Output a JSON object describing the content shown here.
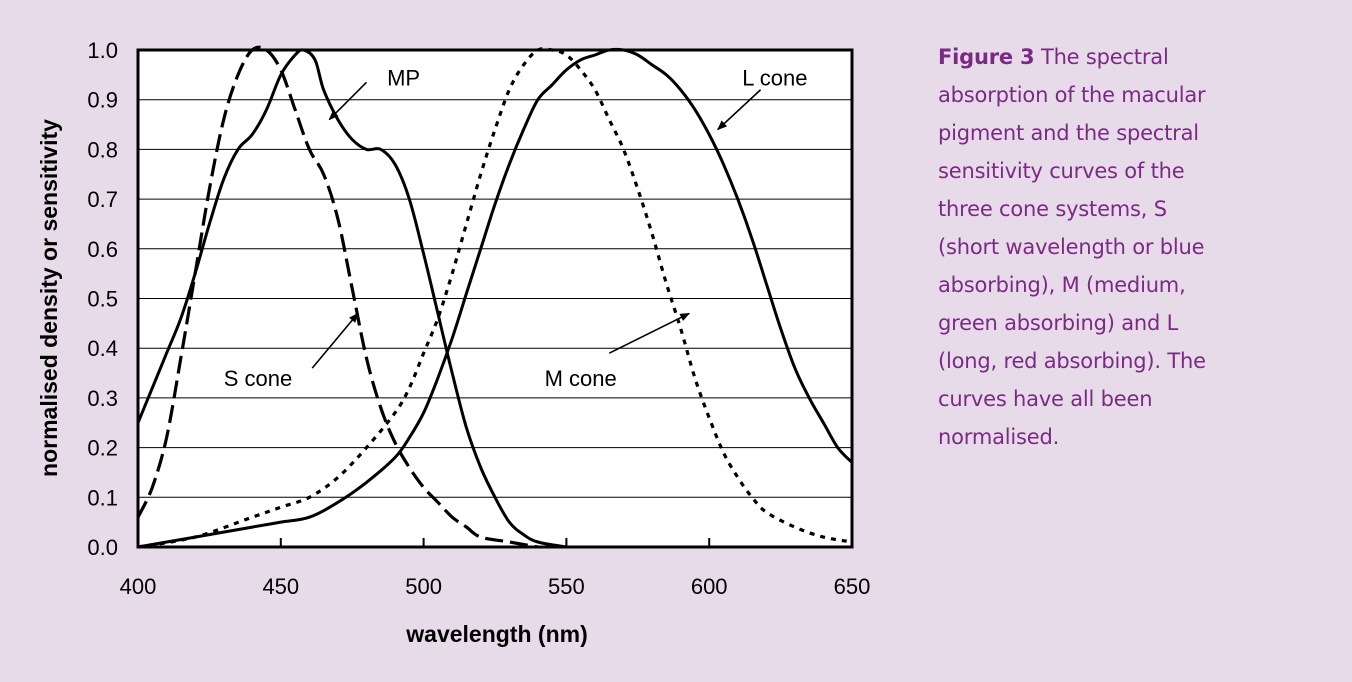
{
  "caption": {
    "label": "Figure 3",
    "text": "The spectral absorption of the macular pigment and the spectral sensitivity curves of the three cone systems, S (short wavelength or blue absorbing), M (medium, green absorbing) and L (long, red absorbing). The curves have all been normalised."
  },
  "chart_data": {
    "type": "line",
    "title": "",
    "xlabel": "wavelength (nm)",
    "ylabel": "normalised density or sensitivity",
    "xlim": [
      400,
      650
    ],
    "ylim": [
      0.0,
      1.0
    ],
    "xticks": [
      400,
      450,
      500,
      550,
      600,
      650
    ],
    "yticks": [
      0.0,
      0.1,
      0.2,
      0.3,
      0.4,
      0.5,
      0.6,
      0.7,
      0.8,
      0.9,
      1.0
    ],
    "ytick_labels": [
      "0.0",
      "0.1",
      "0.2",
      "0.3",
      "0.4",
      "0.5",
      "0.6",
      "0.7",
      "0.8",
      "0.9",
      "1.0"
    ],
    "grid": "horizontal",
    "series": [
      {
        "name": "MP",
        "style": "solid",
        "points": [
          [
            400,
            0.25
          ],
          [
            405,
            0.32
          ],
          [
            410,
            0.39
          ],
          [
            415,
            0.46
          ],
          [
            420,
            0.55
          ],
          [
            425,
            0.65
          ],
          [
            430,
            0.74
          ],
          [
            435,
            0.8
          ],
          [
            440,
            0.83
          ],
          [
            445,
            0.88
          ],
          [
            450,
            0.95
          ],
          [
            455,
            0.99
          ],
          [
            458,
            1.0
          ],
          [
            462,
            0.98
          ],
          [
            465,
            0.92
          ],
          [
            470,
            0.86
          ],
          [
            475,
            0.82
          ],
          [
            480,
            0.8
          ],
          [
            485,
            0.8
          ],
          [
            490,
            0.77
          ],
          [
            495,
            0.7
          ],
          [
            500,
            0.59
          ],
          [
            505,
            0.47
          ],
          [
            510,
            0.35
          ],
          [
            515,
            0.24
          ],
          [
            520,
            0.16
          ],
          [
            525,
            0.1
          ],
          [
            530,
            0.05
          ],
          [
            535,
            0.025
          ],
          [
            540,
            0.01
          ],
          [
            550,
            0.0
          ]
        ]
      },
      {
        "name": "S cone",
        "style": "dashed",
        "points": [
          [
            400,
            0.06
          ],
          [
            405,
            0.12
          ],
          [
            410,
            0.22
          ],
          [
            415,
            0.38
          ],
          [
            420,
            0.55
          ],
          [
            425,
            0.72
          ],
          [
            430,
            0.86
          ],
          [
            435,
            0.95
          ],
          [
            440,
            1.0
          ],
          [
            445,
            1.0
          ],
          [
            450,
            0.96
          ],
          [
            455,
            0.88
          ],
          [
            460,
            0.8
          ],
          [
            465,
            0.75
          ],
          [
            470,
            0.66
          ],
          [
            475,
            0.52
          ],
          [
            480,
            0.38
          ],
          [
            485,
            0.28
          ],
          [
            490,
            0.21
          ],
          [
            495,
            0.16
          ],
          [
            500,
            0.12
          ],
          [
            505,
            0.09
          ],
          [
            510,
            0.06
          ],
          [
            515,
            0.04
          ],
          [
            520,
            0.02
          ],
          [
            530,
            0.01
          ],
          [
            540,
            0.0
          ]
        ]
      },
      {
        "name": "M cone",
        "style": "dotted",
        "points": [
          [
            400,
            0.0
          ],
          [
            420,
            0.02
          ],
          [
            440,
            0.06
          ],
          [
            450,
            0.08
          ],
          [
            460,
            0.1
          ],
          [
            470,
            0.14
          ],
          [
            480,
            0.2
          ],
          [
            490,
            0.27
          ],
          [
            495,
            0.32
          ],
          [
            500,
            0.39
          ],
          [
            505,
            0.46
          ],
          [
            510,
            0.55
          ],
          [
            515,
            0.65
          ],
          [
            520,
            0.75
          ],
          [
            525,
            0.84
          ],
          [
            530,
            0.92
          ],
          [
            535,
            0.97
          ],
          [
            540,
            1.0
          ],
          [
            545,
            1.0
          ],
          [
            550,
            0.99
          ],
          [
            555,
            0.96
          ],
          [
            560,
            0.92
          ],
          [
            565,
            0.86
          ],
          [
            570,
            0.8
          ],
          [
            575,
            0.72
          ],
          [
            580,
            0.63
          ],
          [
            585,
            0.53
          ],
          [
            590,
            0.44
          ],
          [
            595,
            0.34
          ],
          [
            600,
            0.26
          ],
          [
            605,
            0.19
          ],
          [
            610,
            0.14
          ],
          [
            615,
            0.1
          ],
          [
            620,
            0.07
          ],
          [
            630,
            0.04
          ],
          [
            640,
            0.02
          ],
          [
            650,
            0.01
          ]
        ]
      },
      {
        "name": "L cone",
        "style": "solid",
        "points": [
          [
            400,
            0.0
          ],
          [
            420,
            0.02
          ],
          [
            440,
            0.04
          ],
          [
            450,
            0.05
          ],
          [
            460,
            0.06
          ],
          [
            470,
            0.09
          ],
          [
            480,
            0.13
          ],
          [
            490,
            0.18
          ],
          [
            495,
            0.22
          ],
          [
            500,
            0.27
          ],
          [
            505,
            0.34
          ],
          [
            510,
            0.42
          ],
          [
            515,
            0.51
          ],
          [
            520,
            0.6
          ],
          [
            525,
            0.69
          ],
          [
            530,
            0.77
          ],
          [
            535,
            0.84
          ],
          [
            540,
            0.9
          ],
          [
            545,
            0.93
          ],
          [
            550,
            0.96
          ],
          [
            555,
            0.98
          ],
          [
            560,
            0.99
          ],
          [
            565,
            1.0
          ],
          [
            570,
            1.0
          ],
          [
            575,
            0.99
          ],
          [
            580,
            0.97
          ],
          [
            585,
            0.95
          ],
          [
            590,
            0.92
          ],
          [
            595,
            0.88
          ],
          [
            600,
            0.83
          ],
          [
            605,
            0.77
          ],
          [
            610,
            0.7
          ],
          [
            615,
            0.62
          ],
          [
            620,
            0.53
          ],
          [
            625,
            0.44
          ],
          [
            630,
            0.36
          ],
          [
            635,
            0.3
          ],
          [
            640,
            0.25
          ],
          [
            645,
            0.2
          ],
          [
            650,
            0.17
          ]
        ]
      }
    ],
    "annotations": [
      {
        "text": "MP",
        "label_at": [
          493,
          0.945
        ],
        "arrow_from": [
          480,
          0.935
        ],
        "arrow_to": [
          467,
          0.86
        ]
      },
      {
        "text": "S cone",
        "label_at": [
          442,
          0.34
        ],
        "arrow_from": [
          461,
          0.36
        ],
        "arrow_to": [
          477,
          0.47
        ]
      },
      {
        "text": "M cone",
        "label_at": [
          555,
          0.34
        ],
        "arrow_from": [
          565,
          0.39
        ],
        "arrow_to": [
          593,
          0.47
        ]
      },
      {
        "text": "L cone",
        "label_at": [
          623,
          0.945
        ],
        "arrow_from": [
          618,
          0.92
        ],
        "arrow_to": [
          603,
          0.84
        ]
      }
    ]
  }
}
